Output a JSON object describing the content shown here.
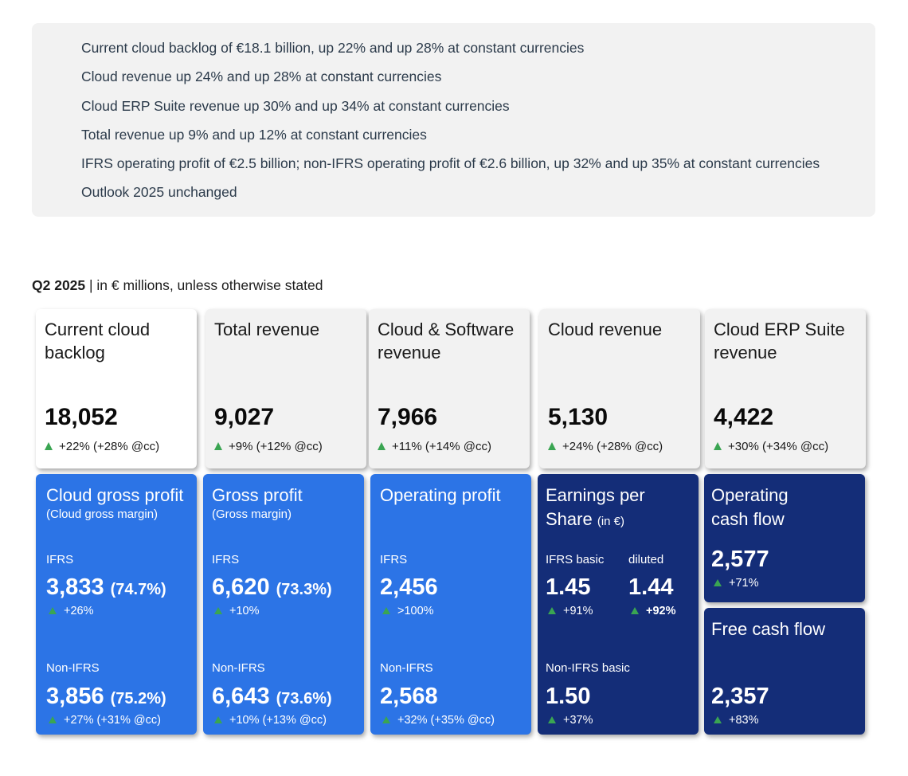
{
  "highlights": [
    "Current cloud backlog of €18.1 billion, up 22% and up 28% at constant currencies",
    "Cloud revenue up 24% and up 28% at constant currencies",
    "Cloud ERP Suite revenue up 30% and up 34% at constant currencies",
    "Total revenue up 9% and up 12% at constant currencies",
    "IFRS operating profit of €2.5 billion; non-IFRS operating profit of €2.6 billion, up 32% and up 35% at constant currencies",
    "Outlook 2025 unchanged"
  ],
  "section": {
    "period": "Q2 2025",
    "subtitle": " | in € millions, unless otherwise stated"
  },
  "top_cards": [
    {
      "title": "Current cloud backlog",
      "value": "18,052",
      "delta": "+22% (+28% @cc)"
    },
    {
      "title": "Total revenue",
      "value": "9,027",
      "delta": "+9% (+12% @cc)"
    },
    {
      "title": "Cloud & Software revenue",
      "value": "7,966",
      "delta": "+11% (+14% @cc)"
    },
    {
      "title": "Cloud revenue",
      "value": "5,130",
      "delta": "+24% (+28% @cc)"
    },
    {
      "title": "Cloud ERP Suite revenue",
      "value": "4,422",
      "delta": "+30% (+34% @cc)"
    }
  ],
  "cloud_gross_profit": {
    "title": "Cloud gross profit",
    "subtitle": "(Cloud gross margin)",
    "ifrs_label": "IFRS",
    "ifrs_value": "3,833",
    "ifrs_pct": "(74.7%)",
    "ifrs_delta": "+26%",
    "nonifrs_label": "Non-IFRS",
    "nonifrs_value": "3,856",
    "nonifrs_pct": "(75.2%)",
    "nonifrs_delta": "+27% (+31% @cc)"
  },
  "gross_profit": {
    "title": "Gross profit",
    "subtitle": "(Gross margin)",
    "ifrs_label": "IFRS",
    "ifrs_value": "6,620",
    "ifrs_pct": "(73.3%)",
    "ifrs_delta": "+10%",
    "nonifrs_label": "Non-IFRS",
    "nonifrs_value": "6,643",
    "nonifrs_pct": "(73.6%)",
    "nonifrs_delta": "+10% (+13% @cc)"
  },
  "operating_profit": {
    "title": "Operating profit",
    "ifrs_label": "IFRS",
    "ifrs_value": "2,456",
    "ifrs_delta": ">100%",
    "nonifrs_label": "Non-IFRS",
    "nonifrs_value": "2,568",
    "nonifrs_delta": "+32% (+35% @cc)"
  },
  "eps": {
    "title_line1": "Earnings per",
    "title_line2": "Share",
    "unit": "(in €)",
    "basic_label": "IFRS basic",
    "basic_value": "1.45",
    "basic_delta": "+91%",
    "diluted_label": "diluted",
    "diluted_value": "1.44",
    "diluted_delta": "+92%",
    "nonifrs_label": "Non-IFRS basic",
    "nonifrs_value": "1.50",
    "nonifrs_delta": "+37%"
  },
  "operating_cash_flow": {
    "title_line1": "Operating",
    "title_line2": "cash flow",
    "value": "2,577",
    "delta": "+71%"
  },
  "free_cash_flow": {
    "title": "Free cash flow",
    "value": "2,357",
    "delta": "+83%"
  },
  "colors": {
    "highlight_bg": "#f2f2f2",
    "card_blue": "#2c74e6",
    "card_navy": "#142d78",
    "up_arrow": "#3aa552"
  }
}
